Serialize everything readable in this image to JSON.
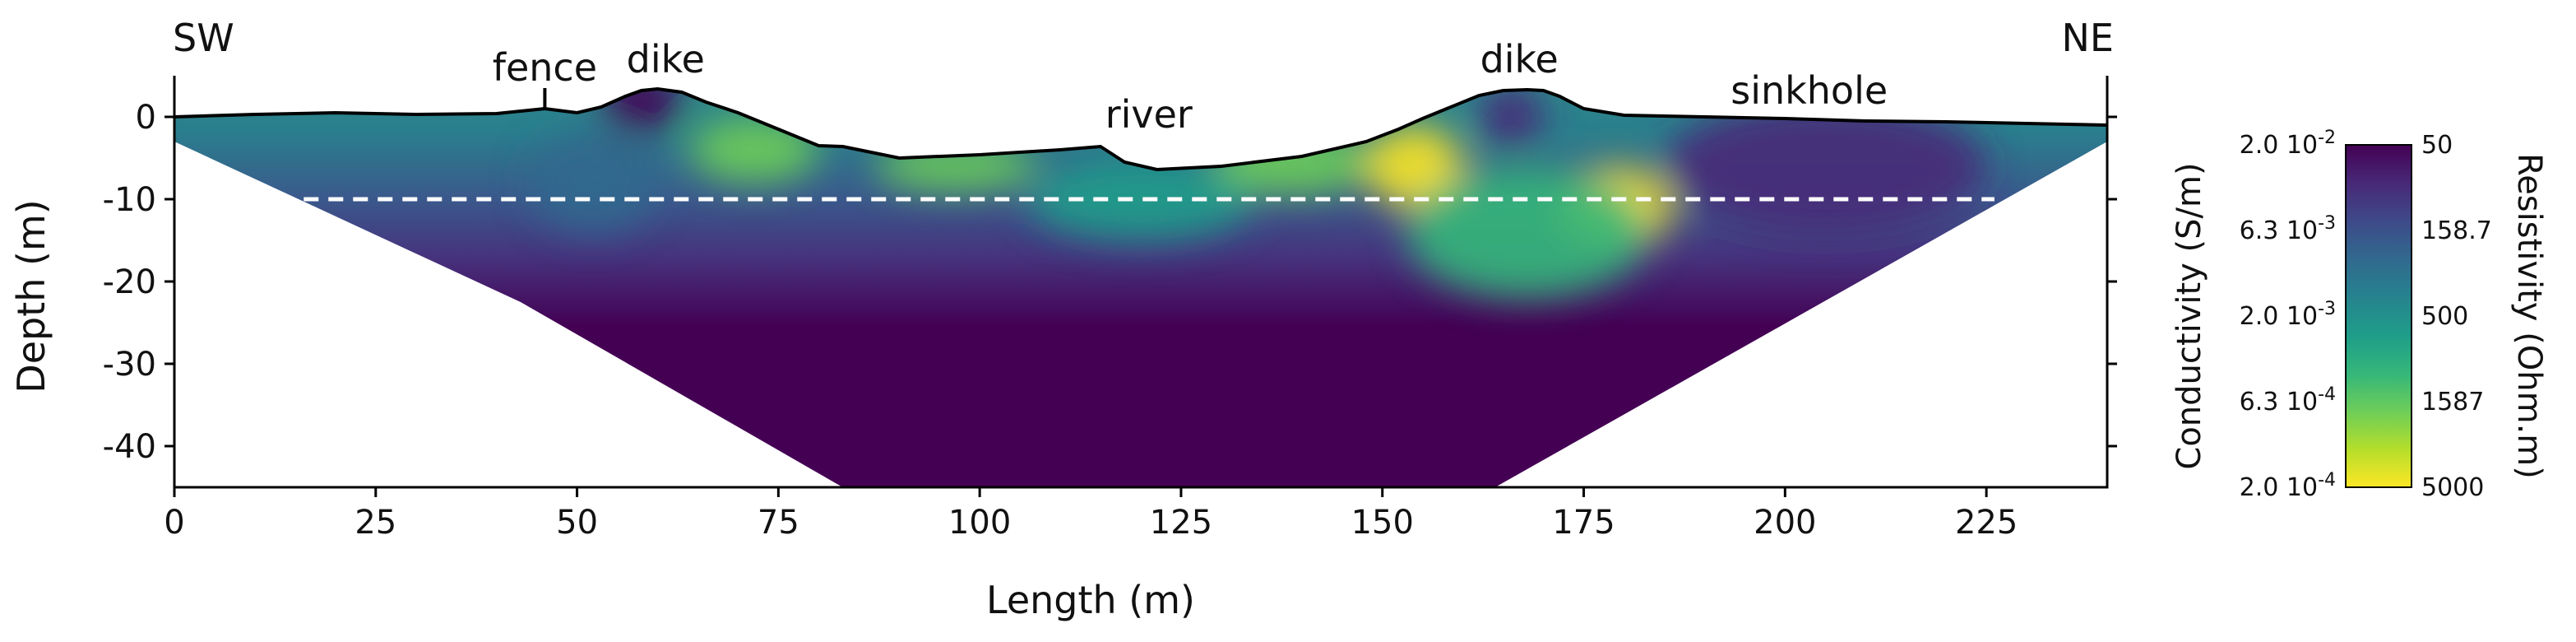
{
  "chart_data": {
    "type": "heatmap",
    "title": "",
    "xlabel": "Length (m)",
    "ylabel": "Depth (m)",
    "xlim": [
      0,
      240
    ],
    "ylim": [
      -45,
      5
    ],
    "x_ticks": [
      0,
      25,
      50,
      75,
      100,
      125,
      150,
      175,
      200,
      225
    ],
    "y_ticks": [
      0,
      -10,
      -20,
      -30,
      -40
    ],
    "grid": false,
    "ends": {
      "left": "SW",
      "right": "NE"
    },
    "annotations": [
      {
        "text": "fence",
        "x": 46
      },
      {
        "text": "dike",
        "x": 61
      },
      {
        "text": "river",
        "x": 121
      },
      {
        "text": "dike",
        "x": 167
      },
      {
        "text": "sinkhole",
        "x": 203
      }
    ],
    "reference_line": {
      "depth": -10,
      "x_start": 13,
      "x_end": 226,
      "style": "dashed",
      "color": "#ffffff"
    },
    "topography": {
      "x": [
        0,
        10,
        20,
        30,
        40,
        44,
        46,
        50,
        53,
        56,
        58,
        60,
        63,
        66,
        70,
        75,
        80,
        83,
        86,
        90,
        100,
        110,
        115,
        118,
        122,
        130,
        140,
        148,
        152,
        155,
        158,
        162,
        165,
        168,
        170,
        172,
        175,
        180,
        190,
        200,
        210,
        220,
        230,
        240
      ],
      "y": [
        0,
        0.3,
        0.5,
        0.3,
        0.4,
        0.8,
        1.0,
        0.5,
        1.2,
        2.5,
        3.2,
        3.4,
        3.0,
        1.8,
        0.5,
        -1.5,
        -3.5,
        -3.6,
        -4.2,
        -5.0,
        -4.6,
        -4.0,
        -3.6,
        -5.5,
        -6.4,
        -6.0,
        -4.8,
        -3.0,
        -1.5,
        -0.2,
        1.0,
        2.6,
        3.2,
        3.3,
        3.2,
        2.5,
        1.0,
        0.2,
        0.0,
        -0.2,
        -0.5,
        -0.6,
        -0.8,
        -1.0
      ]
    },
    "section_bounds": {
      "left_edge": [
        [
          0,
          -3
        ],
        [
          43,
          -22.5
        ],
        [
          83,
          -45
        ]
      ],
      "bottom": [
        [
          83,
          -45
        ],
        [
          164,
          -45
        ]
      ],
      "right_edge": [
        [
          164,
          -45
        ],
        [
          240,
          -3
        ]
      ]
    },
    "resistivity_anomalies": [
      {
        "x": 58,
        "depth": 2,
        "rx": 5,
        "ry": 4,
        "resistivity": 50
      },
      {
        "x": 72,
        "depth": -4,
        "rx": 8,
        "ry": 4,
        "resistivity": 1800
      },
      {
        "x": 97,
        "depth": -6,
        "rx": 10,
        "ry": 3,
        "resistivity": 1587
      },
      {
        "x": 120,
        "depth": -10,
        "rx": 14,
        "ry": 5,
        "resistivity": 600
      },
      {
        "x": 139,
        "depth": -5.5,
        "rx": 10,
        "ry": 4,
        "resistivity": 1800
      },
      {
        "x": 154,
        "depth": -6,
        "rx": 6,
        "ry": 5,
        "resistivity": 4500
      },
      {
        "x": 166,
        "depth": 0,
        "rx": 4,
        "ry": 4,
        "resistivity": 100
      },
      {
        "x": 179,
        "depth": -11,
        "rx": 7,
        "ry": 5,
        "resistivity": 4000
      },
      {
        "x": 168,
        "depth": -14,
        "rx": 15,
        "ry": 8,
        "resistivity": 900
      },
      {
        "x": 52,
        "depth": -8,
        "rx": 8,
        "ry": 6,
        "resistivity": 200
      },
      {
        "x": 205,
        "depth": -6,
        "rx": 20,
        "ry": 8,
        "resistivity": 70
      }
    ],
    "colorbar": {
      "left_title": "Conductivity (S/m)",
      "right_title": "Resistivity (Ohm.m)",
      "conductivity_labels": [
        "2.0 10^-2",
        "6.3 10^-3",
        "2.0 10^-3",
        "6.3 10^-4",
        "2.0 10^-4"
      ],
      "resistivity_labels": [
        "50",
        "158.7",
        "500",
        "1587",
        "5000"
      ],
      "resistivity_range": [
        50,
        5000
      ],
      "scale": "log",
      "colormap": [
        "#440154",
        "#482878",
        "#3e4989",
        "#31688e",
        "#26828e",
        "#1f9e89",
        "#35b779",
        "#6ece58",
        "#b5de2b",
        "#fde725"
      ]
    }
  }
}
